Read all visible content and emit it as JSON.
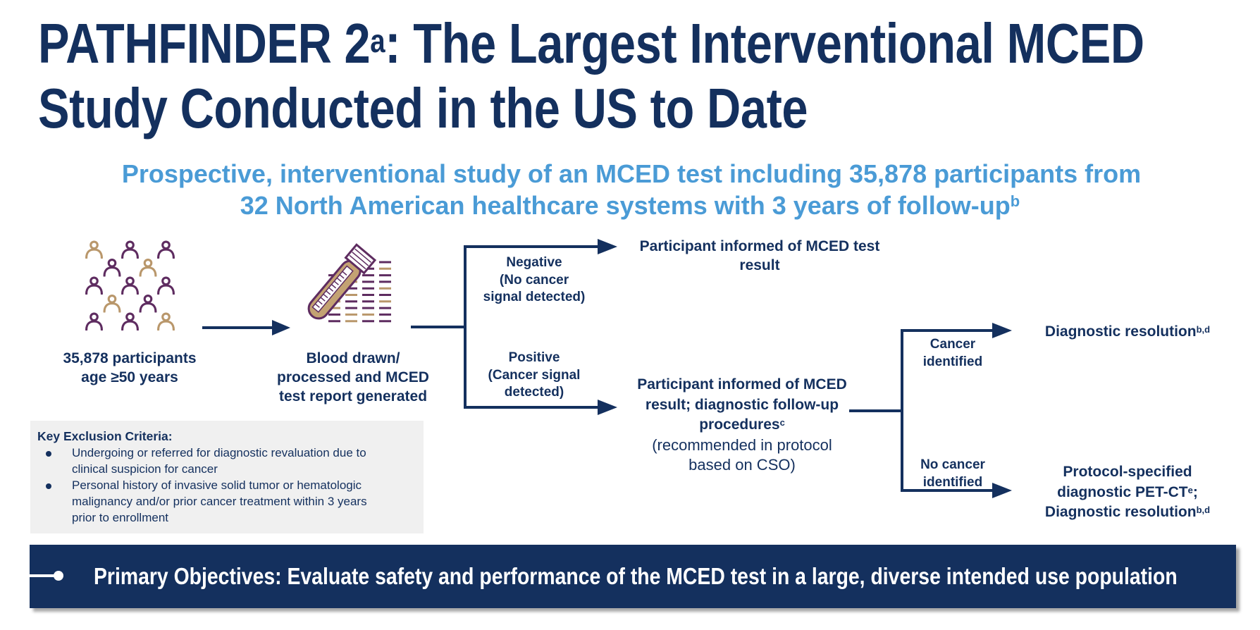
{
  "title": {
    "line1_main": "PATHFINDER 2",
    "line1_sup": "a",
    "line1_rest": ": The Largest Interventional MCED",
    "line2": "Study Conducted in the US to Date"
  },
  "subtitle": {
    "line1": "Prospective, interventional study of an MCED test including 35,878 participants from",
    "line2": "32 North American healthcare systems with 3 years of follow-up",
    "line2_sup": "b"
  },
  "colors": {
    "navy": "#14305e",
    "light_blue": "#4a9bd6",
    "purple": "#5e2c60",
    "tan": "#b9976b",
    "box_gray": "#f0f0f0"
  },
  "population": {
    "icon": "people-group-icon",
    "line1": "35,878 participants",
    "line2": "age ≥50 years"
  },
  "blood": {
    "icon": "test-tube-report-icon",
    "line1": "Blood drawn/",
    "line2": "processed and MCED",
    "line3": "test report generated"
  },
  "negative_branch": {
    "label_line1": "Negative",
    "label_line2": "(No cancer",
    "label_line3": "signal detected)",
    "outcome_line1": "Participant informed of MCED test",
    "outcome_line2": "result"
  },
  "positive_branch": {
    "label_line1": "Positive",
    "label_line2": "(Cancer signal",
    "label_line3": "detected)",
    "outcome_line1": "Participant informed of MCED",
    "outcome_line2": "result; diagnostic follow-up",
    "outcome_line3": "procedures",
    "outcome_line3_sup": "c",
    "outcome_line4": "(recommended in protocol",
    "outcome_line5": "based on CSO)"
  },
  "cancer_identified": {
    "label_line1": "Cancer",
    "label_line2": "identified",
    "outcome": "Diagnostic resolution",
    "outcome_sup": "b,d"
  },
  "no_cancer_identified": {
    "label_line1": "No cancer",
    "label_line2": "identified",
    "outcome_line1": "Protocol-specified",
    "outcome_line2": "diagnostic PET-CT",
    "outcome_line2_sup": "e",
    "outcome_line2_end": ";",
    "outcome_line3": "Diagnostic resolution",
    "outcome_line3_sup": "b,d"
  },
  "exclusion": {
    "title": "Key Exclusion Criteria:",
    "items": [
      {
        "line1": "Undergoing or referred for diagnostic revaluation due to",
        "line2": "clinical suspicion for cancer"
      },
      {
        "line1": "Personal history of invasive solid tumor or hematologic",
        "line2": "malignancy and/or prior cancer treatment within 3 years",
        "line3": "prior to enrollment"
      }
    ]
  },
  "objective": {
    "text": "Primary Objectives: Evaluate safety and performance of the MCED test in a large, diverse intended use population"
  },
  "people_grid": [
    [
      "tan",
      "purple",
      "purple"
    ],
    [
      "purple",
      "tan"
    ],
    [
      "purple",
      "purple",
      "purple"
    ],
    [
      "tan",
      "purple"
    ],
    [
      "purple",
      "purple",
      "tan"
    ]
  ]
}
